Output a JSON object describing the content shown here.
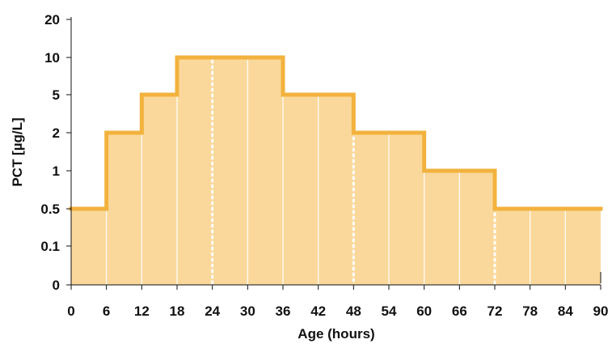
{
  "chart_data": {
    "type": "area",
    "step": true,
    "title": "",
    "xlabel": "Age (hours)",
    "ylabel": "PCT [µg/L]",
    "x_ticks": [
      0,
      6,
      12,
      18,
      24,
      30,
      36,
      42,
      48,
      54,
      60,
      66,
      72,
      78,
      84,
      90
    ],
    "xlim": [
      0,
      90
    ],
    "y_ticks": [
      "0",
      "0.1",
      "0.5",
      "1",
      "2",
      "5",
      "10",
      "20"
    ],
    "y_scale": "ordinal-tick",
    "series": [
      {
        "steps": [
          {
            "x_start": 0,
            "x_end": 6,
            "y": "0.5"
          },
          {
            "x_start": 6,
            "x_end": 12,
            "y": "2"
          },
          {
            "x_start": 12,
            "x_end": 18,
            "y": "5"
          },
          {
            "x_start": 18,
            "x_end": 36,
            "y": "10"
          },
          {
            "x_start": 36,
            "x_end": 48,
            "y": "5"
          },
          {
            "x_start": 48,
            "x_end": 60,
            "y": "2"
          },
          {
            "x_start": 60,
            "x_end": 72,
            "y": "1"
          },
          {
            "x_start": 72,
            "x_end": 90,
            "y": "0.5"
          }
        ]
      }
    ],
    "dotted_markers_x": [
      24,
      48,
      72
    ],
    "colors": {
      "fill": "#fad89b",
      "stroke": "#f2b23d",
      "gridline": "#ffffff",
      "axis": "#111111"
    },
    "grid": "vertical-white-lines"
  }
}
